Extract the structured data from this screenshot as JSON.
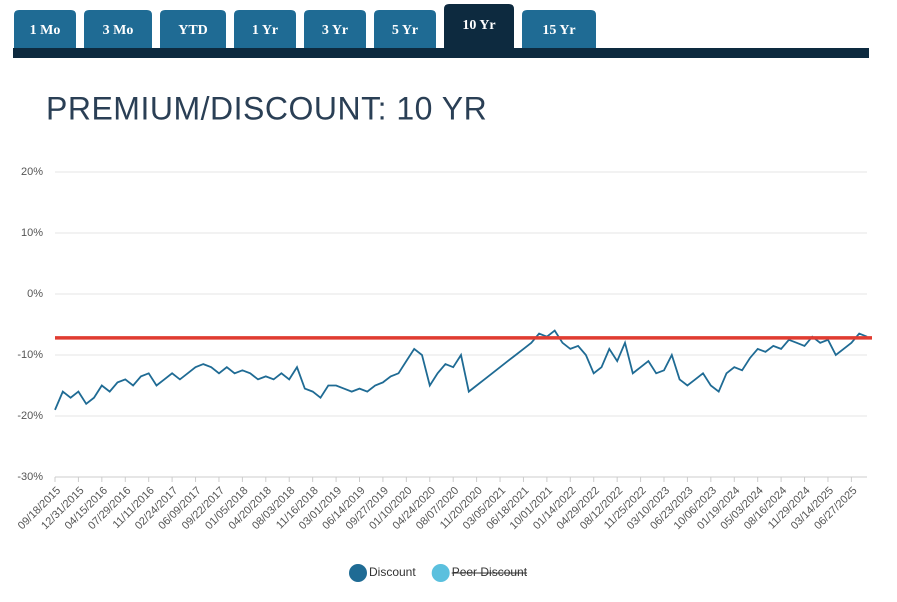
{
  "tabs": [
    "1 Mo",
    "3 Mo",
    "YTD",
    "1 Yr",
    "3 Yr",
    "5 Yr",
    "10 Yr",
    "15 Yr"
  ],
  "active_tab": 6,
  "chart_data": {
    "type": "line",
    "title": "PREMIUM/DISCOUNT: 10 YR",
    "categories": [
      "09/18/2015",
      null,
      null,
      "12/31/2015",
      null,
      null,
      "04/15/2016",
      null,
      null,
      "07/29/2016",
      null,
      null,
      "11/11/2016",
      null,
      null,
      "02/24/2017",
      null,
      null,
      "06/09/2017",
      null,
      null,
      "09/22/2017",
      null,
      null,
      "01/05/2018",
      null,
      null,
      "04/20/2018",
      null,
      null,
      "08/03/2018",
      null,
      null,
      "11/16/2018",
      null,
      null,
      "03/01/2019",
      null,
      null,
      "06/14/2019",
      null,
      null,
      "09/27/2019",
      null,
      null,
      "01/10/2020",
      null,
      null,
      "04/24/2020",
      null,
      null,
      "08/07/2020",
      null,
      null,
      "11/20/2020",
      null,
      null,
      "03/05/2021",
      null,
      null,
      "06/18/2021",
      null,
      null,
      "10/01/2021",
      null,
      null,
      "01/14/2022",
      null,
      null,
      "04/29/2022",
      null,
      null,
      "08/12/2022",
      null,
      null,
      "11/25/2022",
      null,
      null,
      "03/10/2023",
      null,
      null,
      "06/23/2023",
      null,
      null,
      "10/06/2023",
      null,
      null,
      "01/19/2024",
      null,
      null,
      "05/03/2024",
      null,
      null,
      "08/16/2024",
      null,
      null,
      "11/29/2024",
      null,
      null,
      "03/14/2025",
      null,
      null,
      "06/27/2025",
      null,
      null
    ],
    "series": [
      {
        "name": "Discount",
        "color": "#1f6b94",
        "values": [
          -19,
          -16,
          -17,
          -16,
          -18,
          -17,
          -15,
          -16,
          -14.5,
          -14,
          -15,
          -13.5,
          -13,
          -15,
          -14,
          -13,
          -14,
          -13,
          -12,
          -11.5,
          -12,
          -13,
          -12,
          -13,
          -12.5,
          -13,
          -14,
          -13.5,
          -14,
          -13,
          -14,
          -12,
          -15.5,
          -16,
          -17,
          -15,
          -15,
          -15.5,
          -16,
          -15.5,
          -16,
          -15,
          -14.5,
          -13.5,
          -13,
          -11,
          -9,
          -10,
          -15,
          -13,
          -11.5,
          -12,
          -10,
          -16,
          -15,
          -14,
          -13,
          -12,
          -11,
          -10,
          -9,
          -8,
          -6.5,
          -7,
          -6,
          -8,
          -9,
          -8.5,
          -10,
          -13,
          -12,
          -9,
          -11,
          -8,
          -13,
          -12,
          -11,
          -13,
          -12.5,
          -10,
          -14,
          -15,
          -14,
          -13,
          -15,
          -16,
          -13,
          -12,
          -12.5,
          -10.5,
          -9,
          -9.5,
          -8.5,
          -9,
          -7.5,
          -8,
          -8.5,
          -7,
          -8,
          -7.5,
          -10,
          -9,
          -8,
          -6.5,
          -7
        ]
      },
      {
        "name": "Peer Discount",
        "color": "#5bc0de",
        "hidden": true
      }
    ],
    "reference_line": {
      "value": -7.2,
      "color": "#e03c31"
    },
    "ylim": [
      -30,
      20
    ],
    "yticks": [
      {
        "value": -30,
        "label": "-30%"
      },
      {
        "value": -20,
        "label": "-20%"
      },
      {
        "value": -10,
        "label": "-10%"
      },
      {
        "value": 0,
        "label": "0%"
      },
      {
        "value": 10,
        "label": "10%"
      },
      {
        "value": 20,
        "label": "20%"
      }
    ],
    "grid": true,
    "legend": "bottom"
  }
}
